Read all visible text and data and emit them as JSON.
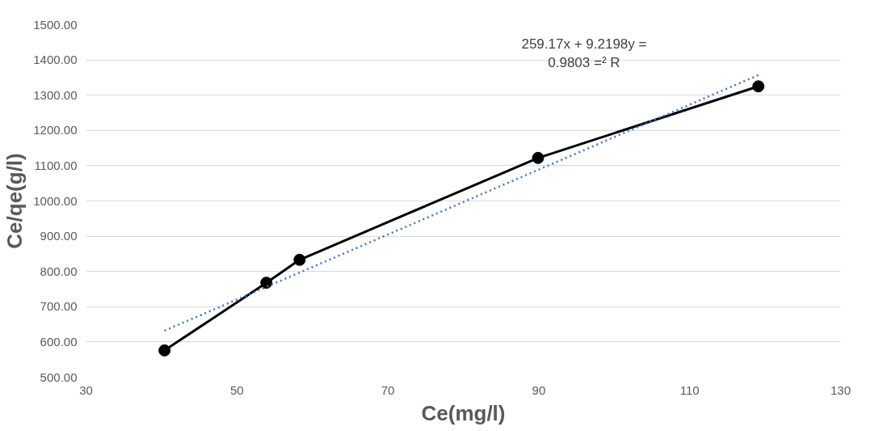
{
  "chart_data": {
    "type": "line",
    "xlabel": "Ce(mg/l)",
    "ylabel": "Ce/qe(g/l)",
    "xlim": [
      30,
      130
    ],
    "xticks": [
      30,
      50,
      70,
      90,
      110,
      130
    ],
    "ylim": [
      500,
      1500
    ],
    "yticks": [
      {
        "value": 500,
        "label": "500.00"
      },
      {
        "value": 600,
        "label": "600.00"
      },
      {
        "value": 700,
        "label": "700.00"
      },
      {
        "value": 800,
        "label": "800.00"
      },
      {
        "value": 900,
        "label": "900.00"
      },
      {
        "value": 1000,
        "label": "1000.00"
      },
      {
        "value": 1100,
        "label": "1100.00"
      },
      {
        "value": 1200,
        "label": "1200.00"
      },
      {
        "value": 1300,
        "label": "1300.00"
      },
      {
        "value": 1400,
        "label": "1400.00"
      },
      {
        "value": 1500,
        "label": "1500.00"
      }
    ],
    "grid": "y",
    "annotations": [
      "259.17x + 9.2198y =\n0.9803 =² R"
    ],
    "series": [
      {
        "color": "#000000",
        "marker": "circle",
        "line_style": "solid",
        "x": [
          40.4,
          53.9,
          58.3,
          89.9,
          119.1
        ],
        "values": [
          576,
          768,
          833,
          1122,
          1325
        ]
      },
      {
        "color": "#4472c4",
        "marker": "none",
        "line_style": "dotted",
        "x": [
          40.4,
          119.1
        ],
        "values": [
          632,
          1357
        ]
      }
    ]
  }
}
